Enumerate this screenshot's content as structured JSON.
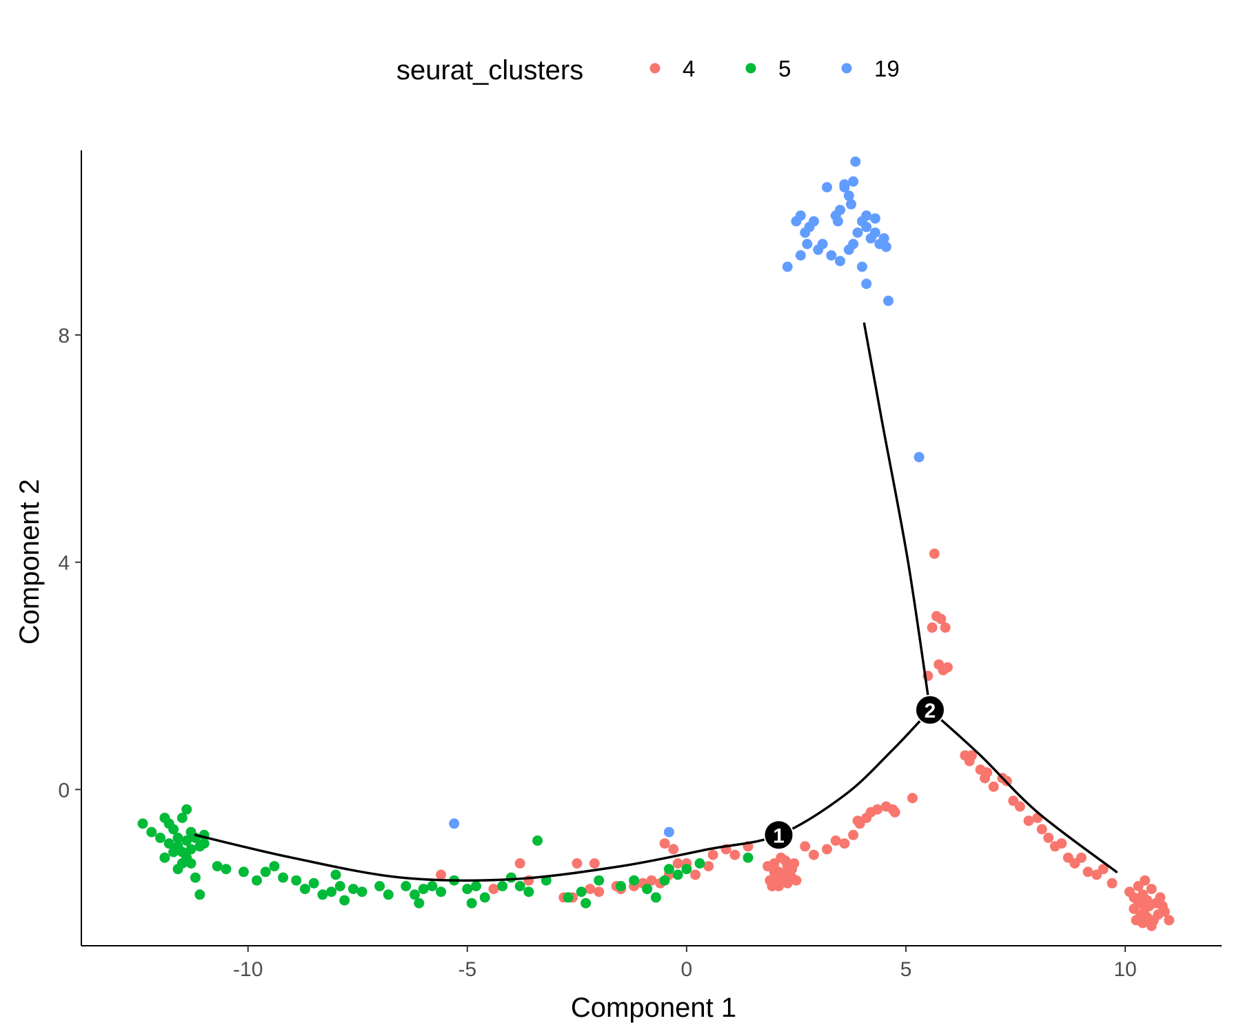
{
  "chart_data": {
    "type": "scatter",
    "xlabel": "Component 1",
    "ylabel": "Component 2",
    "xlim": [
      -13.8,
      12.2
    ],
    "ylim": [
      -2.75,
      11.25
    ],
    "x_ticks": [
      -10,
      -5,
      0,
      5,
      10
    ],
    "y_ticks": [
      0,
      4,
      8
    ],
    "grid": false,
    "legend": {
      "title": "seurat_clusters",
      "placement": "top",
      "entries": [
        {
          "label": "4",
          "color": "#F8766D"
        },
        {
          "label": "5",
          "color": "#00BA38"
        },
        {
          "label": "19",
          "color": "#619CFF"
        }
      ]
    },
    "trajectory": [
      [
        [
          -11.2,
          -0.8
        ],
        [
          -9,
          -1.2
        ],
        [
          -6.5,
          -1.55
        ],
        [
          -4,
          -1.58
        ],
        [
          -1.5,
          -1.35
        ],
        [
          0.5,
          -1.05
        ],
        [
          2.1,
          -0.8
        ],
        [
          3.6,
          -0.1
        ],
        [
          4.7,
          0.7
        ],
        [
          5.55,
          1.4
        ]
      ],
      [
        [
          5.55,
          1.4
        ],
        [
          5.05,
          4
        ],
        [
          4.45,
          6.5
        ],
        [
          4.05,
          8.2
        ]
      ],
      [
        [
          5.55,
          1.4
        ],
        [
          6.7,
          0.6
        ],
        [
          8,
          -0.4
        ],
        [
          9.8,
          -1.45
        ]
      ]
    ],
    "branch_points": [
      {
        "label": "1",
        "x": 2.1,
        "y": -0.8
      },
      {
        "label": "2",
        "x": 5.55,
        "y": 1.4
      }
    ],
    "series": [
      {
        "name": "4",
        "color": "#F8766D",
        "points": [
          [
            2.0,
            -1.3
          ],
          [
            2.1,
            -1.45
          ],
          [
            2.2,
            -1.5
          ],
          [
            2.3,
            -1.35
          ],
          [
            2.4,
            -1.55
          ],
          [
            2.2,
            -1.6
          ],
          [
            2.0,
            -1.45
          ],
          [
            1.9,
            -1.6
          ],
          [
            2.1,
            -1.7
          ],
          [
            2.3,
            -1.65
          ],
          [
            2.5,
            -1.6
          ],
          [
            2.25,
            -1.25
          ],
          [
            2.4,
            -1.4
          ],
          [
            2.05,
            -1.55
          ],
          [
            1.85,
            -1.35
          ],
          [
            2.15,
            -1.2
          ],
          [
            2.35,
            -1.5
          ],
          [
            1.95,
            -1.7
          ],
          [
            2.0,
            -1.55
          ],
          [
            2.45,
            -1.3
          ],
          [
            2.7,
            -1.0
          ],
          [
            2.9,
            -1.15
          ],
          [
            3.2,
            -1.05
          ],
          [
            3.4,
            -0.9
          ],
          [
            3.6,
            -0.95
          ],
          [
            3.8,
            -0.8
          ],
          [
            3.95,
            -0.6
          ],
          [
            4.1,
            -0.5
          ],
          [
            4.35,
            -0.35
          ],
          [
            4.55,
            -0.3
          ],
          [
            4.75,
            -0.4
          ],
          [
            5.15,
            -0.15
          ],
          [
            3.9,
            -0.55
          ],
          [
            4.2,
            -0.4
          ],
          [
            4.7,
            -0.35
          ],
          [
            6.35,
            0.6
          ],
          [
            6.45,
            0.5
          ],
          [
            6.5,
            0.6
          ],
          [
            6.7,
            0.35
          ],
          [
            6.8,
            0.2
          ],
          [
            6.85,
            0.3
          ],
          [
            7.0,
            0.05
          ],
          [
            7.2,
            0.2
          ],
          [
            7.3,
            0.15
          ],
          [
            7.45,
            -0.2
          ],
          [
            7.6,
            -0.3
          ],
          [
            7.8,
            -0.55
          ],
          [
            8.0,
            -0.5
          ],
          [
            8.1,
            -0.7
          ],
          [
            8.25,
            -0.85
          ],
          [
            8.4,
            -1.0
          ],
          [
            8.55,
            -0.95
          ],
          [
            8.7,
            -1.2
          ],
          [
            8.85,
            -1.3
          ],
          [
            9.0,
            -1.2
          ],
          [
            9.15,
            -1.45
          ],
          [
            9.35,
            -1.5
          ],
          [
            9.5,
            -1.4
          ],
          [
            9.7,
            -1.65
          ],
          [
            10.1,
            -1.8
          ],
          [
            10.2,
            -1.9
          ],
          [
            10.3,
            -2.0
          ],
          [
            10.4,
            -1.85
          ],
          [
            10.45,
            -2.1
          ],
          [
            10.5,
            -1.95
          ],
          [
            10.35,
            -2.2
          ],
          [
            10.25,
            -2.3
          ],
          [
            10.55,
            -2.05
          ],
          [
            10.6,
            -1.75
          ],
          [
            10.7,
            -2.0
          ],
          [
            10.75,
            -2.2
          ],
          [
            10.8,
            -1.9
          ],
          [
            10.5,
            -2.25
          ],
          [
            10.4,
            -2.35
          ],
          [
            10.2,
            -2.1
          ],
          [
            10.65,
            -2.3
          ],
          [
            10.9,
            -2.15
          ],
          [
            10.3,
            -1.7
          ],
          [
            10.6,
            -2.4
          ],
          [
            11.0,
            -2.3
          ],
          [
            10.45,
            -1.6
          ],
          [
            10.85,
            -2.05
          ],
          [
            5.65,
            4.15
          ],
          [
            5.7,
            3.05
          ],
          [
            5.8,
            3.0
          ],
          [
            5.6,
            2.85
          ],
          [
            5.9,
            2.85
          ],
          [
            5.75,
            2.2
          ],
          [
            5.85,
            2.1
          ],
          [
            5.95,
            2.15
          ],
          [
            5.5,
            2.0
          ],
          [
            -0.5,
            -0.95
          ],
          [
            -0.3,
            -1.05
          ],
          [
            -0.2,
            -1.3
          ],
          [
            -0.4,
            -1.5
          ],
          [
            -0.6,
            -1.65
          ],
          [
            -0.8,
            -1.6
          ],
          [
            -1.0,
            -1.65
          ],
          [
            -1.2,
            -1.7
          ],
          [
            -1.5,
            -1.75
          ],
          [
            -1.6,
            -1.7
          ],
          [
            -2.0,
            -1.8
          ],
          [
            -2.2,
            -1.75
          ],
          [
            -2.1,
            -1.3
          ],
          [
            -2.5,
            -1.3
          ],
          [
            -2.6,
            -1.9
          ],
          [
            -2.8,
            -1.9
          ],
          [
            -3.6,
            -1.6
          ],
          [
            -3.8,
            -1.3
          ],
          [
            -4.4,
            -1.75
          ],
          [
            -5.6,
            -1.5
          ],
          [
            0.0,
            -1.3
          ],
          [
            0.2,
            -1.5
          ],
          [
            0.5,
            -1.35
          ],
          [
            0.6,
            -1.15
          ],
          [
            0.9,
            -1.05
          ],
          [
            1.1,
            -1.15
          ],
          [
            1.4,
            -1.0
          ],
          [
            2.15,
            -0.9
          ]
        ]
      },
      {
        "name": "5",
        "color": "#00BA38",
        "points": [
          [
            -12.4,
            -0.6
          ],
          [
            -12.2,
            -0.75
          ],
          [
            -12.0,
            -0.85
          ],
          [
            -11.8,
            -0.95
          ],
          [
            -11.7,
            -0.7
          ],
          [
            -11.6,
            -1.0
          ],
          [
            -11.5,
            -1.1
          ],
          [
            -11.4,
            -0.9
          ],
          [
            -11.3,
            -1.05
          ],
          [
            -11.2,
            -0.85
          ],
          [
            -11.1,
            -1.0
          ],
          [
            -11.0,
            -0.95
          ],
          [
            -11.5,
            -1.3
          ],
          [
            -11.4,
            -1.2
          ],
          [
            -11.6,
            -1.4
          ],
          [
            -11.3,
            -1.3
          ],
          [
            -11.2,
            -1.55
          ],
          [
            -11.7,
            -1.1
          ],
          [
            -11.8,
            -0.6
          ],
          [
            -11.5,
            -0.5
          ],
          [
            -11.4,
            -0.35
          ],
          [
            -11.9,
            -1.2
          ],
          [
            -11.1,
            -1.85
          ],
          [
            -11.6,
            -0.85
          ],
          [
            -11.3,
            -0.75
          ],
          [
            -11.0,
            -0.8
          ],
          [
            -10.7,
            -1.35
          ],
          [
            -10.5,
            -1.4
          ],
          [
            -10.1,
            -1.45
          ],
          [
            -9.8,
            -1.6
          ],
          [
            -9.6,
            -1.45
          ],
          [
            -9.4,
            -1.35
          ],
          [
            -9.2,
            -1.55
          ],
          [
            -8.9,
            -1.6
          ],
          [
            -8.7,
            -1.75
          ],
          [
            -8.5,
            -1.65
          ],
          [
            -8.3,
            -1.85
          ],
          [
            -8.1,
            -1.8
          ],
          [
            -7.9,
            -1.7
          ],
          [
            -7.8,
            -1.95
          ],
          [
            -7.6,
            -1.75
          ],
          [
            -7.4,
            -1.8
          ],
          [
            -7.0,
            -1.7
          ],
          [
            -6.8,
            -1.85
          ],
          [
            -6.4,
            -1.7
          ],
          [
            -6.2,
            -1.85
          ],
          [
            -6.0,
            -1.75
          ],
          [
            -5.8,
            -1.7
          ],
          [
            -5.6,
            -1.8
          ],
          [
            -5.3,
            -1.6
          ],
          [
            -5.0,
            -1.75
          ],
          [
            -4.8,
            -1.7
          ],
          [
            -4.6,
            -1.9
          ],
          [
            -4.2,
            -1.7
          ],
          [
            -4.0,
            -1.55
          ],
          [
            -3.8,
            -1.7
          ],
          [
            -3.6,
            -1.8
          ],
          [
            -3.4,
            -0.9
          ],
          [
            -2.7,
            -1.9
          ],
          [
            -2.4,
            -1.8
          ],
          [
            -2.0,
            -1.6
          ],
          [
            -1.5,
            -1.7
          ],
          [
            -1.2,
            -1.6
          ],
          [
            -0.9,
            -1.75
          ],
          [
            -0.7,
            -1.9
          ],
          [
            -0.5,
            -1.6
          ],
          [
            -0.4,
            -1.4
          ],
          [
            -0.2,
            -1.5
          ],
          [
            0.0,
            -1.4
          ],
          [
            0.3,
            -1.3
          ],
          [
            1.4,
            -1.2
          ],
          [
            -11.9,
            -0.5
          ],
          [
            -8.0,
            -1.5
          ],
          [
            -6.1,
            -2.0
          ],
          [
            -4.9,
            -2.0
          ],
          [
            -3.2,
            -1.6
          ],
          [
            -2.3,
            -2.0
          ]
        ]
      },
      {
        "name": "19",
        "color": "#619CFF",
        "points": [
          [
            2.3,
            9.2
          ],
          [
            2.6,
            9.4
          ],
          [
            2.7,
            9.8
          ],
          [
            2.8,
            9.9
          ],
          [
            2.9,
            10.0
          ],
          [
            2.5,
            10.0
          ],
          [
            2.6,
            10.1
          ],
          [
            3.0,
            9.5
          ],
          [
            3.1,
            9.6
          ],
          [
            3.3,
            9.4
          ],
          [
            3.4,
            10.1
          ],
          [
            3.5,
            10.2
          ],
          [
            3.6,
            10.6
          ],
          [
            3.7,
            10.45
          ],
          [
            3.8,
            10.7
          ],
          [
            3.5,
            9.3
          ],
          [
            3.7,
            9.5
          ],
          [
            3.8,
            9.6
          ],
          [
            3.9,
            9.8
          ],
          [
            4.0,
            10.0
          ],
          [
            4.1,
            9.9
          ],
          [
            4.2,
            9.7
          ],
          [
            4.3,
            9.8
          ],
          [
            4.4,
            9.6
          ],
          [
            4.0,
            9.2
          ],
          [
            3.85,
            11.05
          ],
          [
            3.6,
            10.65
          ],
          [
            3.75,
            10.3
          ],
          [
            4.55,
            9.55
          ],
          [
            4.1,
            8.9
          ],
          [
            4.6,
            8.6
          ],
          [
            4.3,
            10.05
          ],
          [
            4.1,
            10.1
          ],
          [
            3.2,
            10.6
          ],
          [
            3.45,
            10.0
          ],
          [
            5.3,
            5.85
          ],
          [
            -5.3,
            -0.6
          ],
          [
            -0.4,
            -0.75
          ],
          [
            4.5,
            9.7
          ],
          [
            2.75,
            9.6
          ]
        ]
      }
    ]
  }
}
